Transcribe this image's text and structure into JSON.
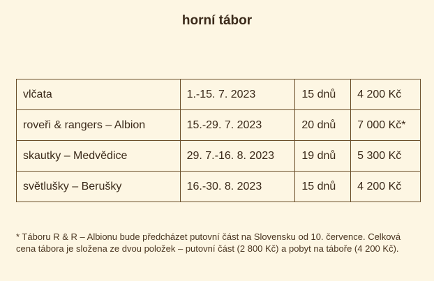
{
  "title": "horní tábor",
  "camps": [
    {
      "group": "vlčata",
      "dates": "1.-15. 7. 2023",
      "days": "15 dnů",
      "price": "4 200 Kč"
    },
    {
      "group": "roveři & rangers – Albion",
      "dates": "15.-29. 7. 2023",
      "days": "20 dnů",
      "price": "7 000 Kč*"
    },
    {
      "group": "skautky – Medvědice",
      "dates": "29. 7.-16. 8. 2023",
      "days": "19 dnů",
      "price": "5 300 Kč"
    },
    {
      "group": "světlušky – Berušky",
      "dates": "16.-30. 8. 2023",
      "days": "15 dnů",
      "price": "4 200 Kč"
    }
  ],
  "footnote": "* Táboru R & R – Albionu bude předcházet putovní část na Slovensku od 10. července. Celková cena tábora je složena ze dvou položek – putovní část (2 800 Kč) a pobyt na táboře (4 200 Kč)."
}
